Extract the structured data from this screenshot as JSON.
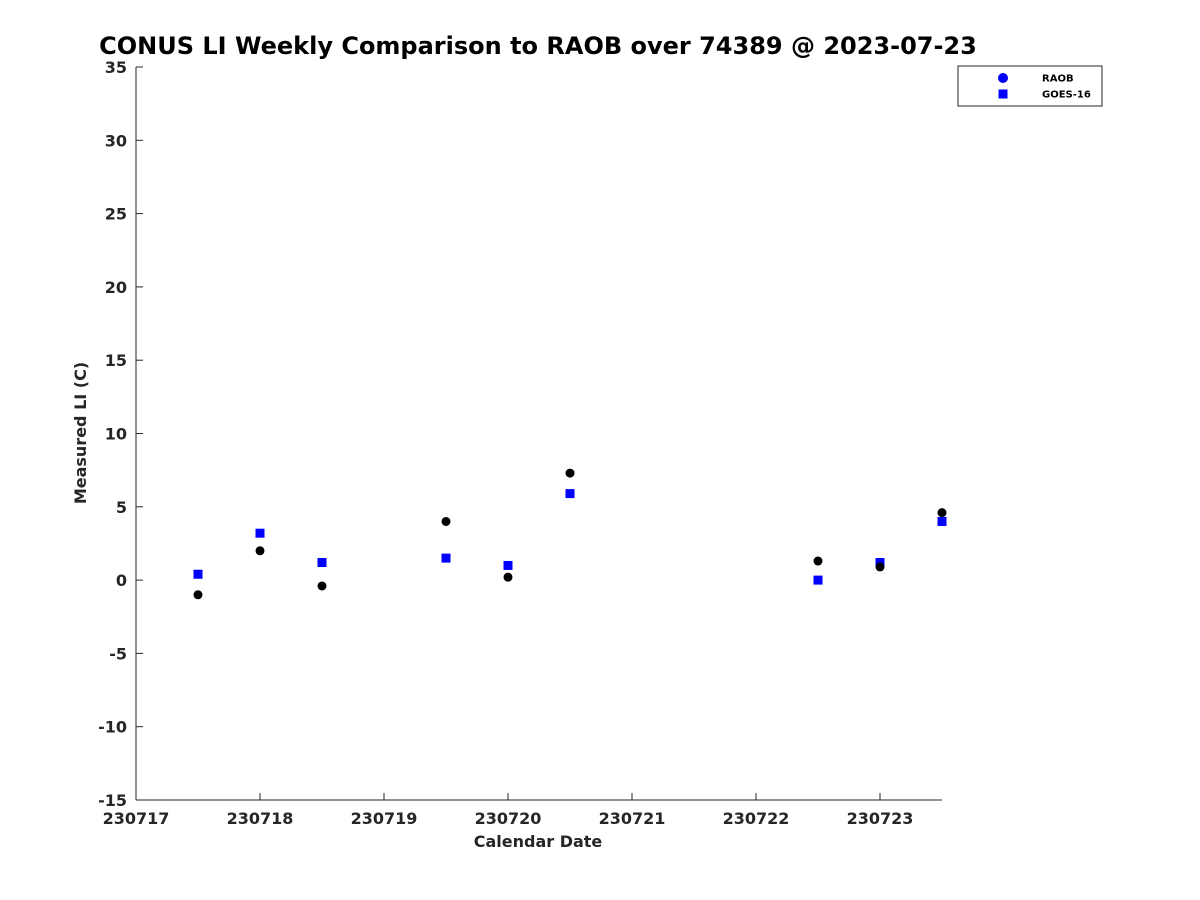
{
  "chart_data": {
    "type": "scatter",
    "title": "CONUS LI Weekly Comparison to RAOB over 74389 @ 2023-07-23",
    "xlabel": "Calendar Date",
    "ylabel": "Measured LI (C)",
    "ylim": [
      -15,
      35
    ],
    "yticks": [
      "-15",
      "-10",
      "-5",
      "0",
      "5",
      "10",
      "15",
      "20",
      "25",
      "30",
      "35"
    ],
    "xlim": [
      "2023-07-17",
      "2023-07-23 12:00"
    ],
    "xticks": [
      "230717",
      "230718",
      "230719",
      "230720",
      "230721",
      "230722",
      "230723"
    ],
    "grid": false,
    "legend_position": "top-right",
    "series": [
      {
        "name": "RAOB",
        "marker": "circle",
        "color": "#000000",
        "legend_color": "#0000ff",
        "points": [
          {
            "x": "2023-07-17 12:00",
            "y": -1.0
          },
          {
            "x": "2023-07-18 00:00",
            "y": 2.0
          },
          {
            "x": "2023-07-18 12:00",
            "y": -0.4
          },
          {
            "x": "2023-07-19 12:00",
            "y": 4.0
          },
          {
            "x": "2023-07-20 00:00",
            "y": 0.2
          },
          {
            "x": "2023-07-20 12:00",
            "y": 7.3
          },
          {
            "x": "2023-07-22 12:00",
            "y": 1.3
          },
          {
            "x": "2023-07-23 00:00",
            "y": 0.9
          },
          {
            "x": "2023-07-23 12:00",
            "y": 4.6
          }
        ]
      },
      {
        "name": "GOES-16",
        "marker": "square",
        "color": "#0000ff",
        "legend_color": "#0000ff",
        "points": [
          {
            "x": "2023-07-17 12:00",
            "y": 0.4
          },
          {
            "x": "2023-07-18 00:00",
            "y": 3.2
          },
          {
            "x": "2023-07-18 12:00",
            "y": 1.2
          },
          {
            "x": "2023-07-19 12:00",
            "y": 1.5
          },
          {
            "x": "2023-07-20 00:00",
            "y": 1.0
          },
          {
            "x": "2023-07-20 12:00",
            "y": 5.9
          },
          {
            "x": "2023-07-22 12:00",
            "y": 0.0
          },
          {
            "x": "2023-07-23 00:00",
            "y": 1.2
          },
          {
            "x": "2023-07-23 12:00",
            "y": 4.0
          }
        ]
      }
    ]
  }
}
